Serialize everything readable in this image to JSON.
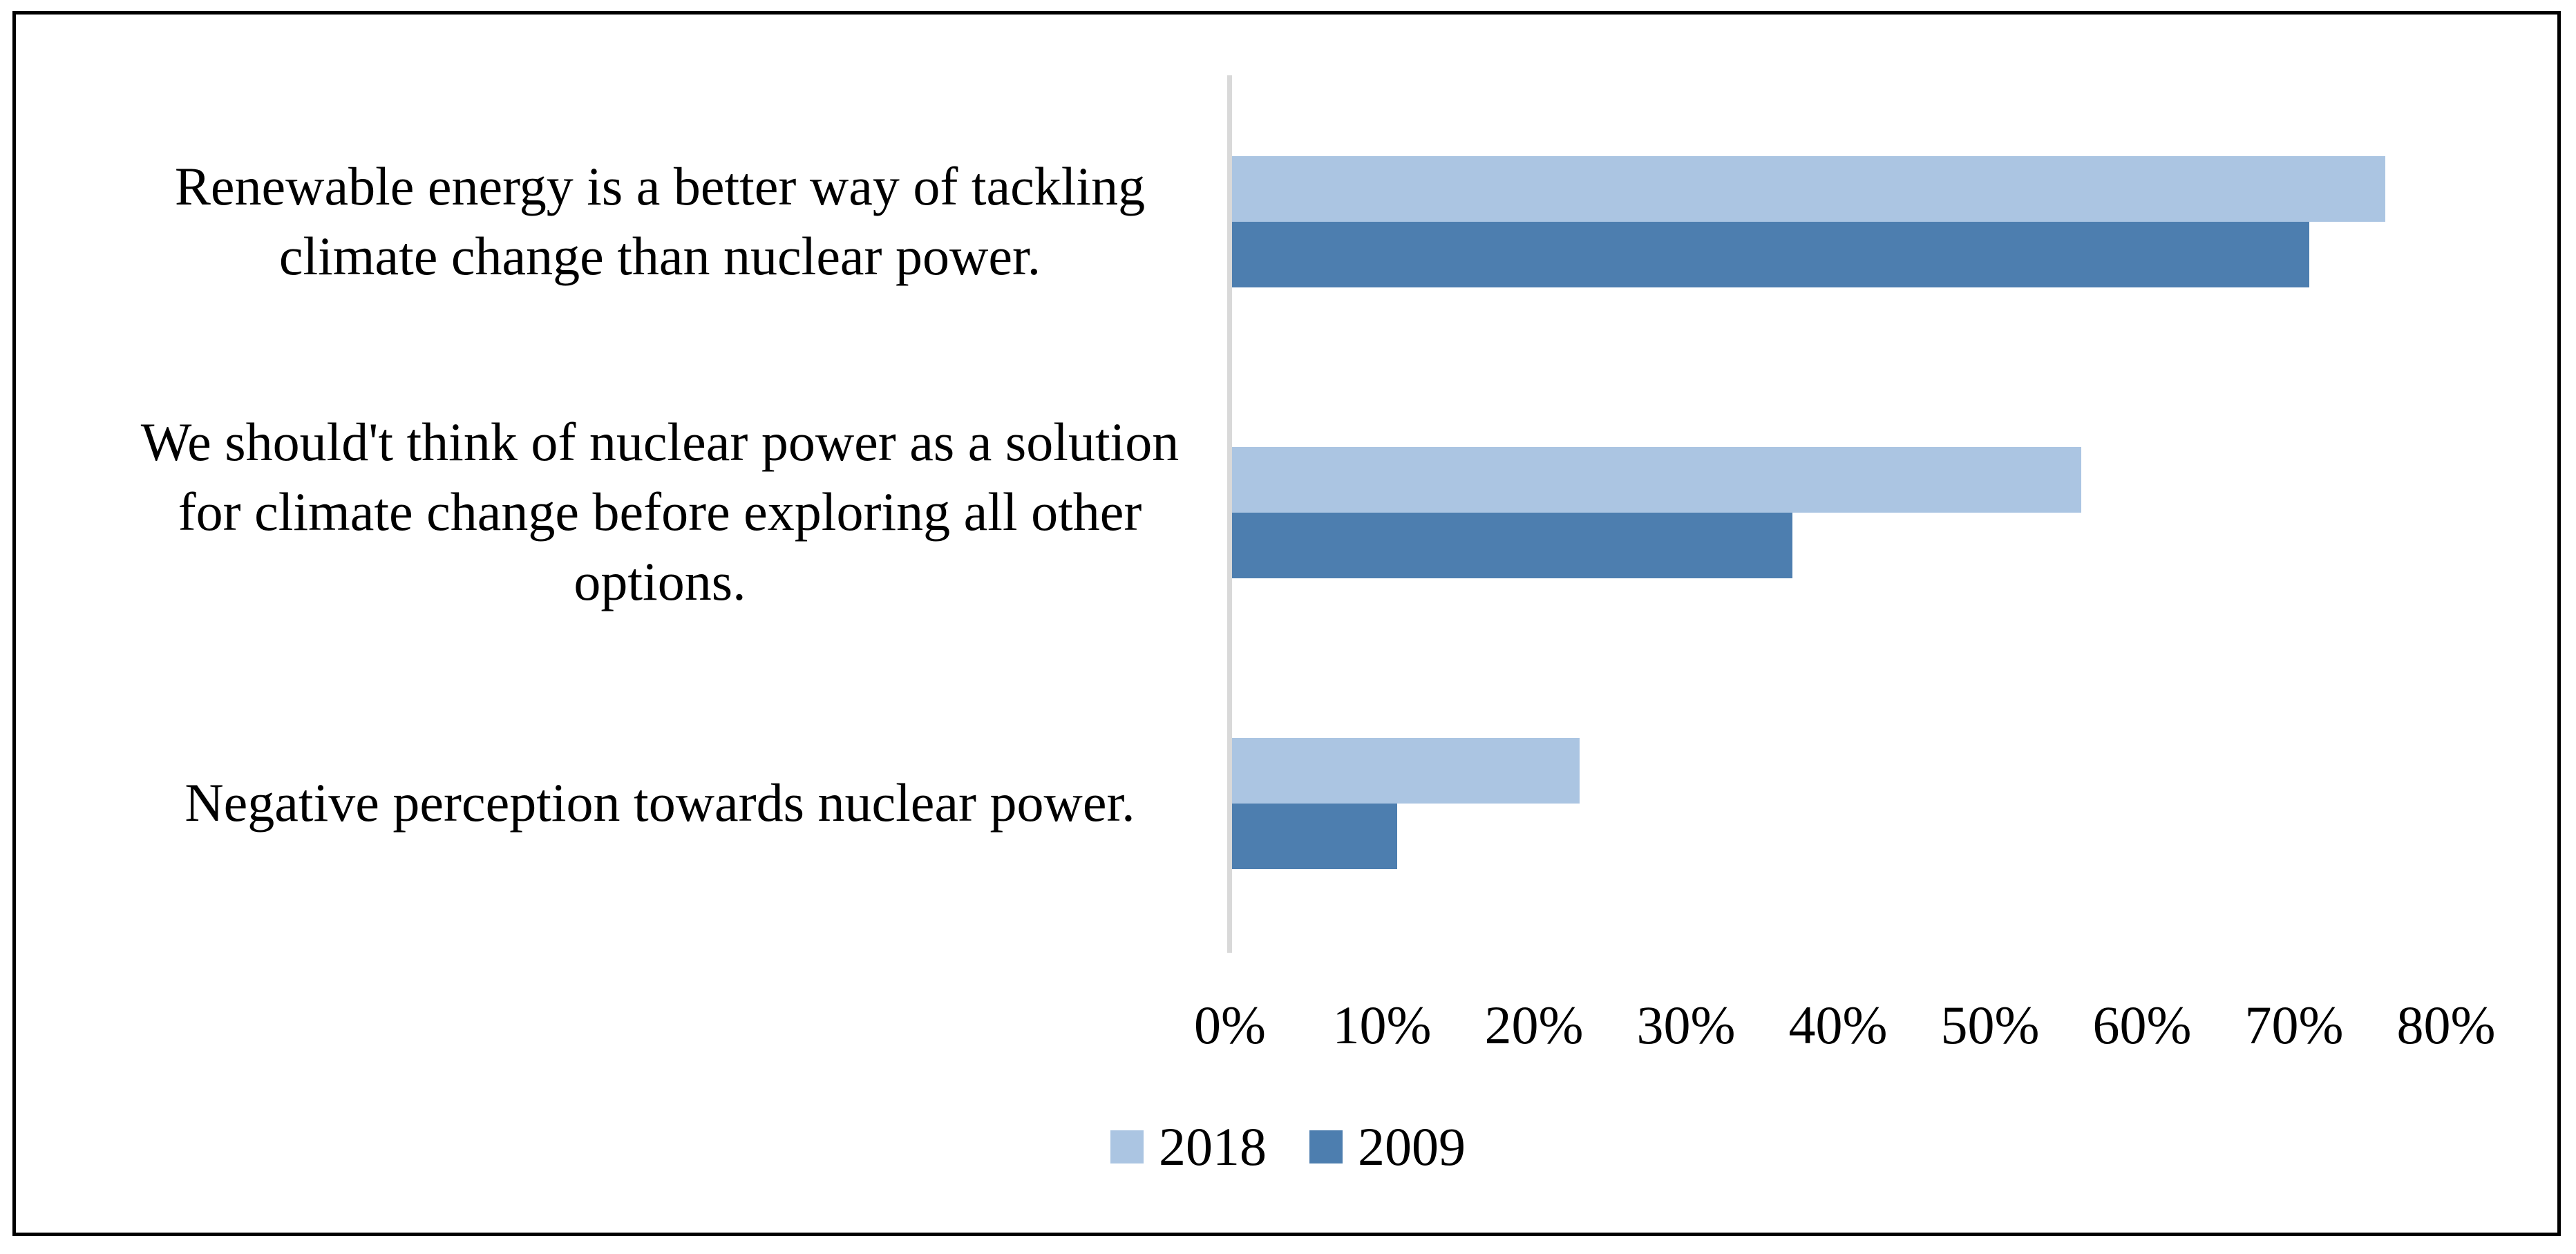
{
  "chart_data": {
    "type": "bar",
    "orientation": "horizontal",
    "title": "",
    "xlabel": "",
    "ylabel": "",
    "grid": false,
    "xlim": [
      0,
      80
    ],
    "x_ticks": [
      "0%",
      "10%",
      "20%",
      "30%",
      "40%",
      "50%",
      "60%",
      "70%",
      "80%"
    ],
    "x_tick_values": [
      0,
      10,
      20,
      30,
      40,
      50,
      60,
      70,
      80
    ],
    "categories": [
      "Renewable energy is a better way of tackling climate change than nuclear power.",
      "We should't think of nuclear power as a solution for climate change before exploring all other options.",
      "Negative perception towards nuclear power."
    ],
    "category_lines": [
      [
        "Renewable energy is a better way of tackling",
        "climate change than nuclear power."
      ],
      [
        "We should't think of nuclear power as a solution",
        "for climate change before exploring all other",
        "options."
      ],
      [
        "Negative perception towards nuclear power."
      ]
    ],
    "series": [
      {
        "name": "2018",
        "color": "#ABC5E2",
        "values": [
          76,
          56,
          23
        ]
      },
      {
        "name": "2009",
        "color": "#4D7EAF",
        "values": [
          71,
          37,
          11
        ]
      }
    ],
    "legend": {
      "position": "bottom",
      "entries": [
        "2018",
        "2009"
      ]
    },
    "axis_line_color": "#D9D9D9",
    "text_color": "#000000",
    "frame_border_color": "#000000"
  }
}
